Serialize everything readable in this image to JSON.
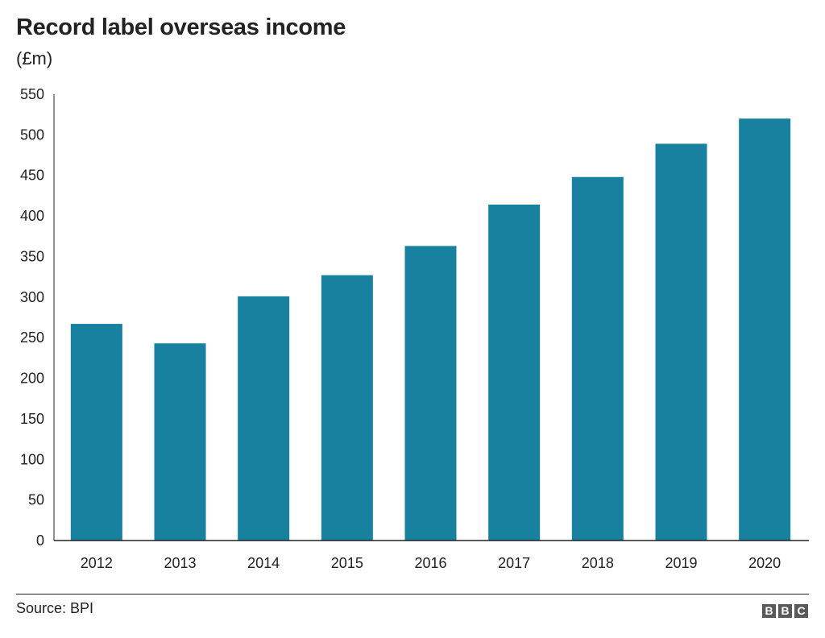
{
  "title": "Record label overseas income",
  "subtitle": "(£m)",
  "source": "Source: BPI",
  "logo": [
    "B",
    "B",
    "C"
  ],
  "colors": {
    "bar": "#17819f",
    "axis": "#222222",
    "text": "#222222"
  },
  "chart_data": {
    "type": "bar",
    "title": "Record label overseas income",
    "subtitle": "(£m)",
    "categories": [
      "2012",
      "2013",
      "2014",
      "2015",
      "2016",
      "2017",
      "2018",
      "2019",
      "2020"
    ],
    "values": [
      267,
      243,
      301,
      327,
      363,
      414,
      448,
      489,
      520
    ],
    "ylim": [
      0,
      550
    ],
    "yticks": [
      0,
      50,
      100,
      150,
      200,
      250,
      300,
      350,
      400,
      450,
      500,
      550
    ],
    "grid": false,
    "legend": "none"
  }
}
